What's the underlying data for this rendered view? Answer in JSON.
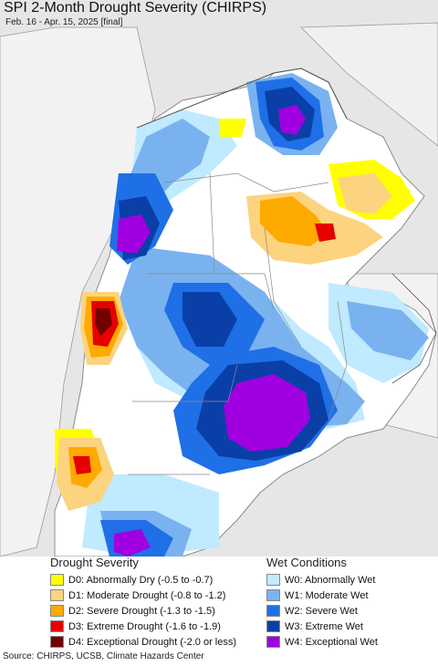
{
  "header": {
    "title": "SPI 2-Month Drought Severity (CHIRPS)",
    "subtitle": "Feb. 16 - Apr. 15, 2025 [final]"
  },
  "colors": {
    "ocean": "#e6e6e6",
    "land_neutral": "#ffffff",
    "borders": "#8a8a8a"
  },
  "legend": {
    "drought": {
      "heading": "Drought Severity",
      "items": [
        {
          "label": "D0: Abnormally Dry (-0.5 to -0.7)",
          "color": "#ffff00"
        },
        {
          "label": "D1: Moderate Drought (-0.8 to -1.2)",
          "color": "#fcd37f"
        },
        {
          "label": "D2: Severe Drought (-1.3 to -1.5)",
          "color": "#ffaa00"
        },
        {
          "label": "D3: Extreme Drought (-1.6 to -1.9)",
          "color": "#e60000"
        },
        {
          "label": "D4: Exceptional Drought (-2.0 or less)",
          "color": "#730000"
        }
      ]
    },
    "wet": {
      "heading": "Wet Conditions",
      "items": [
        {
          "label": "W0: Abnormally Wet",
          "color": "#bfeaff"
        },
        {
          "label": "W1: Moderate Wet",
          "color": "#7ab2f0"
        },
        {
          "label": "W2: Severe Wet",
          "color": "#1f6fe6"
        },
        {
          "label": "W3: Extreme Wet",
          "color": "#0a3fa8"
        },
        {
          "label": "W4: Exceptional Wet",
          "color": "#a000e0"
        }
      ]
    }
  },
  "footer": {
    "source": "Source: CHIRPS, UCSB, Climate Hazards Center"
  }
}
